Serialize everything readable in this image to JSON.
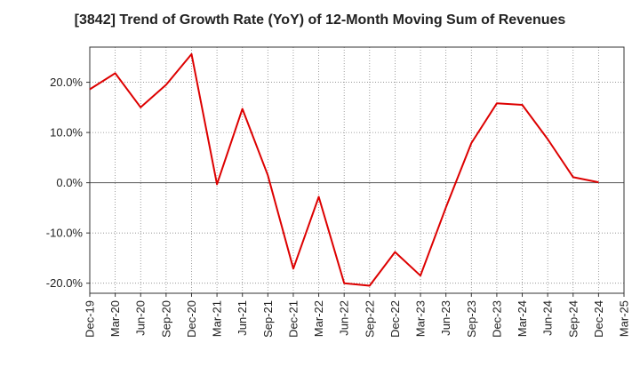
{
  "chart_data": {
    "type": "line",
    "title": "[3842]  Trend of Growth Rate (YoY) of 12-Month Moving Sum of Revenues",
    "xlabel": "",
    "ylabel": "",
    "x_ticks": [
      "Dec-19",
      "Mar-20",
      "Jun-20",
      "Sep-20",
      "Dec-20",
      "Mar-21",
      "Jun-21",
      "Sep-21",
      "Dec-21",
      "Mar-22",
      "Jun-22",
      "Sep-22",
      "Dec-22",
      "Mar-23",
      "Jun-23",
      "Sep-23",
      "Dec-23",
      "Mar-24",
      "Jun-24",
      "Sep-24",
      "Dec-24",
      "Mar-25"
    ],
    "y_ticks": [
      20,
      10,
      0,
      -10,
      -20
    ],
    "y_tick_labels": [
      "20.0%",
      "10.0%",
      "0.0%",
      "-10.0%",
      "-20.0%"
    ],
    "ylim": [
      -22,
      27
    ],
    "grid": true,
    "color": "#dd0000",
    "series": [
      {
        "x": [
          "Dec-19",
          "Mar-20",
          "Jun-20",
          "Sep-20",
          "Dec-20",
          "Mar-21",
          "Jun-21",
          "Sep-21",
          "Dec-21",
          "Mar-22",
          "Jun-22",
          "Sep-22",
          "Dec-22",
          "Mar-23",
          "Jun-23",
          "Sep-23",
          "Dec-23",
          "Mar-24",
          "Jun-24",
          "Sep-24",
          "Dec-24"
        ],
        "values": [
          18.6,
          21.8,
          15.0,
          19.5,
          25.6,
          -0.3,
          14.7,
          1.5,
          -17.1,
          -2.8,
          -20.0,
          -20.5,
          -13.8,
          -18.5,
          -4.9,
          7.9,
          15.8,
          15.5,
          8.7,
          1.1,
          0.1
        ]
      }
    ]
  }
}
